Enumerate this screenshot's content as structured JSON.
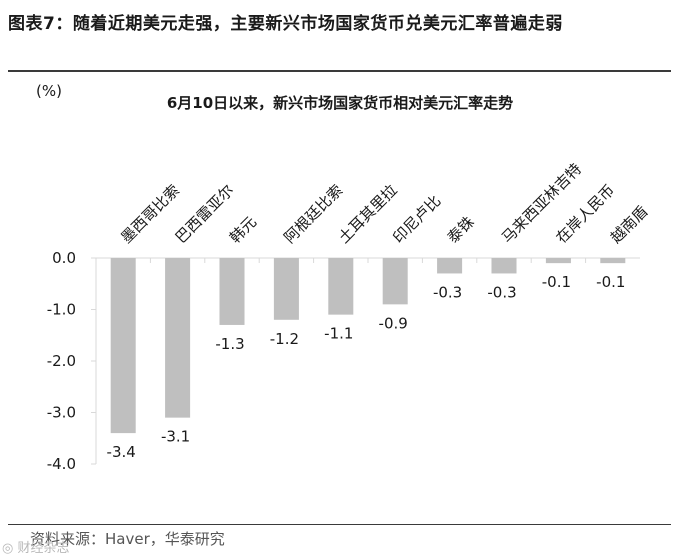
{
  "figure": {
    "title": "图表7：随着近期美元走强，主要新兴市场国家货币兑美元汇率普遍走弱",
    "source": "资料来源：Haver，华泰研究",
    "watermark": "◎ 财经杂志"
  },
  "chart_data": {
    "type": "bar",
    "title": "6月10日以来，新兴市场国家货币相对美元汇率走势",
    "ylabel": "(%)",
    "xlabel": "",
    "categories": [
      "墨西哥比索",
      "巴西雷亚尔",
      "韩元",
      "阿根廷比索",
      "土耳其里拉",
      "印尼卢比",
      "泰铢",
      "马来西亚林吉特",
      "在岸人民币",
      "越南盾"
    ],
    "values": [
      -3.4,
      -3.1,
      -1.3,
      -1.2,
      -1.1,
      -0.9,
      -0.3,
      -0.3,
      -0.1,
      -0.1
    ],
    "data_labels": [
      "-3.4",
      "-3.1",
      "-1.3",
      "-1.2",
      "-1.1",
      "-0.9",
      "-0.3",
      "-0.3",
      "-0.1",
      "-0.1"
    ],
    "ylim": [
      -4.0,
      0.0
    ],
    "yticks": [
      0.0,
      -1.0,
      -2.0,
      -3.0,
      -4.0
    ],
    "ytick_labels": [
      "0.0",
      "-1.0",
      "-2.0",
      "-3.0",
      "-4.0"
    ],
    "grid": false,
    "legend": "none",
    "colors": {
      "bar": "#bfbfbf",
      "axis": "#d9d9d9",
      "text": "#1a1a1a"
    }
  }
}
